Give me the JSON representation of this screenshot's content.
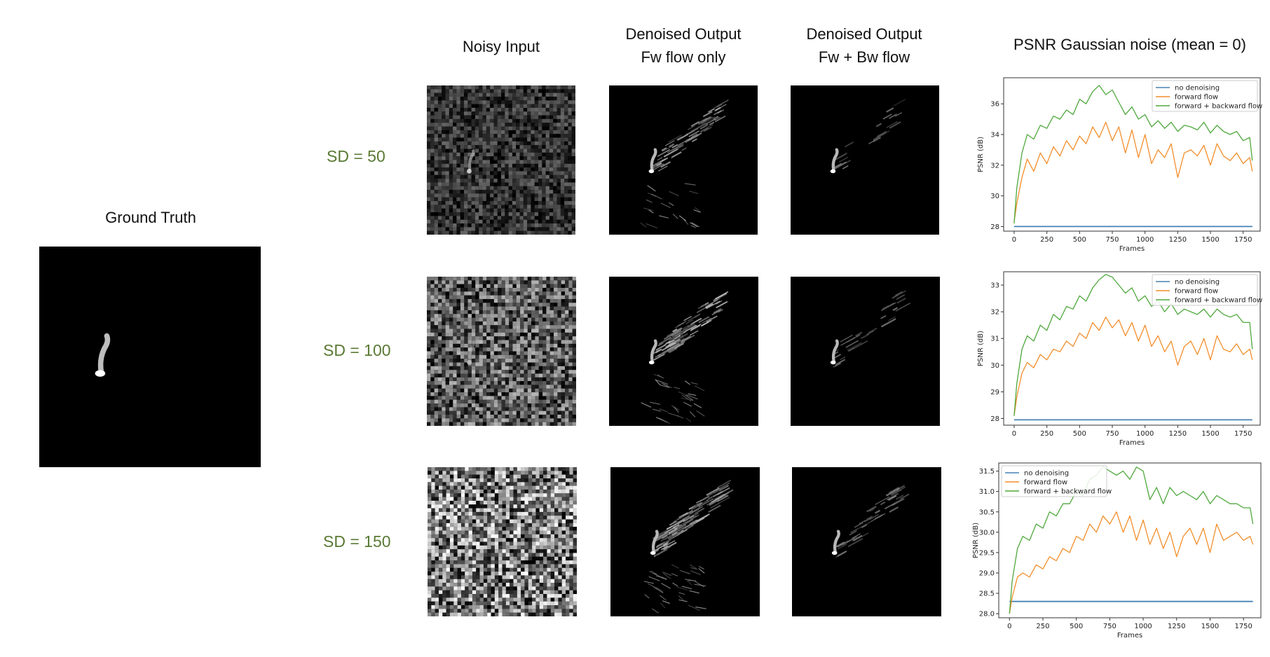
{
  "headers": {
    "ground_truth": "Ground Truth",
    "noisy_input": "Noisy Input",
    "fw_only_line1": "Denoised Output",
    "fw_only_line2": "Fw flow only",
    "fw_bw_line1": "Denoised Output",
    "fw_bw_line2": "Fw + Bw flow",
    "psnr_title": "PSNR Gaussian noise (mean = 0)"
  },
  "rows": [
    {
      "sd_label": "SD = 50"
    },
    {
      "sd_label": "SD = 100"
    },
    {
      "sd_label": "SD = 150"
    }
  ],
  "colors": {
    "no_denoising": "#4682b4",
    "forward": "#f28e2b",
    "forward_backward": "#4ea83c",
    "sd_label": "#5a7a34"
  },
  "chart_data": [
    {
      "type": "line",
      "xlabel": "Frames",
      "ylabel": "PSNR (dB)",
      "xlim": [
        -80,
        1880
      ],
      "ylim": [
        27.7,
        37.7
      ],
      "xticks": [
        0,
        250,
        500,
        750,
        1000,
        1250,
        1500,
        1750
      ],
      "yticks": [
        28,
        30,
        32,
        34,
        36
      ],
      "ytick_labels": [
        "28",
        "30",
        "32",
        "34",
        "36"
      ],
      "legend_position": "top-right",
      "x": [
        0,
        20,
        60,
        100,
        150,
        200,
        250,
        300,
        350,
        400,
        450,
        500,
        550,
        600,
        650,
        700,
        750,
        800,
        850,
        900,
        950,
        1000,
        1050,
        1100,
        1150,
        1200,
        1250,
        1300,
        1350,
        1400,
        1450,
        1500,
        1550,
        1600,
        1650,
        1700,
        1750,
        1800,
        1820
      ],
      "series": [
        {
          "name": "no denoising",
          "color": "#4682b4",
          "values": [
            28.0,
            28.0,
            28.0,
            28.0,
            28.0,
            28.0,
            28.0,
            28.0,
            28.0,
            28.0,
            28.0,
            28.0,
            28.0,
            28.0,
            28.0,
            28.0,
            28.0,
            28.0,
            28.0,
            28.0,
            28.0,
            28.0,
            28.0,
            28.0,
            28.0,
            28.0,
            28.0,
            28.0,
            28.0,
            28.0,
            28.0,
            28.0,
            28.0,
            28.0,
            28.0,
            28.0,
            28.0,
            28.0,
            28.0
          ]
        },
        {
          "name": "forward flow",
          "color": "#f28e2b",
          "values": [
            28.3,
            29.5,
            31.2,
            32.4,
            31.6,
            32.8,
            32.1,
            33.2,
            32.6,
            33.6,
            33.0,
            33.9,
            33.4,
            34.5,
            33.8,
            34.8,
            33.6,
            34.5,
            32.8,
            34.3,
            32.5,
            34.0,
            32.1,
            33.0,
            32.5,
            33.4,
            31.2,
            32.8,
            33.0,
            32.6,
            33.3,
            32.0,
            33.4,
            32.6,
            32.3,
            32.8,
            32.1,
            32.5,
            31.6
          ]
        },
        {
          "name": "forward + backward flow",
          "color": "#4ea83c",
          "values": [
            28.2,
            30.5,
            32.8,
            34.0,
            33.7,
            34.6,
            34.4,
            35.2,
            35.0,
            35.6,
            35.3,
            36.3,
            36.0,
            36.8,
            37.2,
            36.6,
            36.9,
            36.1,
            35.3,
            35.8,
            35.0,
            35.3,
            34.5,
            34.9,
            34.4,
            34.8,
            34.2,
            34.6,
            34.5,
            34.3,
            34.8,
            34.1,
            34.6,
            34.2,
            34.0,
            34.2,
            33.6,
            33.8,
            32.3
          ]
        }
      ]
    },
    {
      "type": "line",
      "xlabel": "Frames",
      "ylabel": "PSNR (dB)",
      "xlim": [
        -80,
        1880
      ],
      "ylim": [
        27.75,
        33.5
      ],
      "xticks": [
        0,
        250,
        500,
        750,
        1000,
        1250,
        1500,
        1750
      ],
      "yticks": [
        28,
        29,
        30,
        31,
        32,
        33
      ],
      "ytick_labels": [
        "28",
        "29",
        "30",
        "31",
        "32",
        "33"
      ],
      "legend_position": "top-right",
      "x": [
        0,
        20,
        60,
        100,
        150,
        200,
        250,
        300,
        350,
        400,
        450,
        500,
        550,
        600,
        650,
        700,
        750,
        800,
        850,
        900,
        950,
        1000,
        1050,
        1100,
        1150,
        1200,
        1250,
        1300,
        1350,
        1400,
        1450,
        1500,
        1550,
        1600,
        1650,
        1700,
        1750,
        1800,
        1820
      ],
      "series": [
        {
          "name": "no denoising",
          "color": "#4682b4",
          "values": [
            27.95,
            27.95,
            27.95,
            27.95,
            27.95,
            27.95,
            27.95,
            27.95,
            27.95,
            27.95,
            27.95,
            27.95,
            27.95,
            27.95,
            27.95,
            27.95,
            27.95,
            27.95,
            27.95,
            27.95,
            27.95,
            27.95,
            27.95,
            27.95,
            27.95,
            27.95,
            27.95,
            27.95,
            27.95,
            27.95,
            27.95,
            27.95,
            27.95,
            27.95,
            27.95,
            27.95,
            27.95,
            27.95,
            27.95
          ]
        },
        {
          "name": "forward flow",
          "color": "#f28e2b",
          "values": [
            28.1,
            28.8,
            29.7,
            30.1,
            29.9,
            30.4,
            30.2,
            30.6,
            30.5,
            30.9,
            30.7,
            31.2,
            31.0,
            31.6,
            31.3,
            31.8,
            31.4,
            31.7,
            31.1,
            31.6,
            30.9,
            31.5,
            30.7,
            31.1,
            30.5,
            30.9,
            30.0,
            30.7,
            30.9,
            30.4,
            31.0,
            30.2,
            31.1,
            30.6,
            30.5,
            30.8,
            30.4,
            30.6,
            30.2
          ]
        },
        {
          "name": "forward + backward flow",
          "color": "#4ea83c",
          "values": [
            28.1,
            29.3,
            30.6,
            31.1,
            30.9,
            31.5,
            31.3,
            31.9,
            31.7,
            32.2,
            32.1,
            32.6,
            32.4,
            32.9,
            33.2,
            33.4,
            33.3,
            33.0,
            32.7,
            32.9,
            32.4,
            32.6,
            32.2,
            32.4,
            32.0,
            32.3,
            31.9,
            32.1,
            32.0,
            31.9,
            32.1,
            31.8,
            32.1,
            31.9,
            31.8,
            31.9,
            31.6,
            31.6,
            30.6
          ]
        }
      ]
    },
    {
      "type": "line",
      "xlabel": "Frames",
      "ylabel": "PSNR (dB)",
      "xlim": [
        -80,
        1880
      ],
      "ylim": [
        27.9,
        31.7
      ],
      "xticks": [
        0,
        250,
        500,
        750,
        1000,
        1250,
        1500,
        1750
      ],
      "yticks": [
        28.0,
        28.5,
        29.0,
        29.5,
        30.0,
        30.5,
        31.0,
        31.5
      ],
      "ytick_labels": [
        "28.0",
        "28.5",
        "29.0",
        "29.5",
        "30.0",
        "30.5",
        "31.0",
        "31.5"
      ],
      "legend_position": "top-left",
      "x": [
        0,
        20,
        60,
        100,
        150,
        200,
        250,
        300,
        350,
        400,
        450,
        500,
        550,
        600,
        650,
        700,
        750,
        800,
        850,
        900,
        950,
        1000,
        1050,
        1100,
        1150,
        1200,
        1250,
        1300,
        1350,
        1400,
        1450,
        1500,
        1550,
        1600,
        1650,
        1700,
        1750,
        1800,
        1820
      ],
      "series": [
        {
          "name": "no denoising",
          "color": "#4682b4",
          "values": [
            28.3,
            28.3,
            28.3,
            28.3,
            28.3,
            28.3,
            28.3,
            28.3,
            28.3,
            28.3,
            28.3,
            28.3,
            28.3,
            28.3,
            28.3,
            28.3,
            28.3,
            28.3,
            28.3,
            28.3,
            28.3,
            28.3,
            28.3,
            28.3,
            28.3,
            28.3,
            28.3,
            28.3,
            28.3,
            28.3,
            28.3,
            28.3,
            28.3,
            28.3,
            28.3,
            28.3,
            28.3,
            28.3,
            28.3
          ]
        },
        {
          "name": "forward flow",
          "color": "#f28e2b",
          "values": [
            28.0,
            28.4,
            28.9,
            29.0,
            28.9,
            29.2,
            29.1,
            29.4,
            29.3,
            29.6,
            29.5,
            29.9,
            29.8,
            30.2,
            30.0,
            30.4,
            30.2,
            30.5,
            30.0,
            30.4,
            29.8,
            30.3,
            29.7,
            30.1,
            29.6,
            30.0,
            29.4,
            29.9,
            30.1,
            29.7,
            30.1,
            29.5,
            30.2,
            29.8,
            29.9,
            30.0,
            29.8,
            29.9,
            29.7
          ]
        },
        {
          "name": "forward + backward flow",
          "color": "#4ea83c",
          "values": [
            28.0,
            28.8,
            29.6,
            29.9,
            29.8,
            30.2,
            30.1,
            30.5,
            30.4,
            30.7,
            30.7,
            31.0,
            30.9,
            31.3,
            31.4,
            31.6,
            31.5,
            31.4,
            31.5,
            31.3,
            31.6,
            31.5,
            30.8,
            31.1,
            30.7,
            31.1,
            30.9,
            31.0,
            30.9,
            30.8,
            31.0,
            30.7,
            30.9,
            30.8,
            30.7,
            30.7,
            30.6,
            30.6,
            30.2
          ]
        }
      ]
    }
  ]
}
